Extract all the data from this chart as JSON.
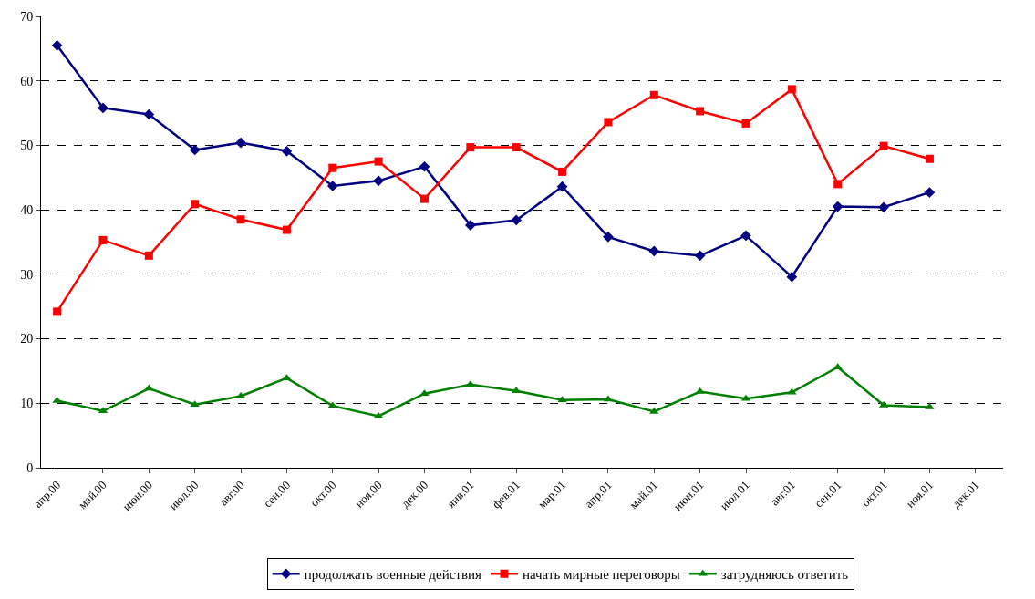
{
  "chart_data": {
    "type": "line",
    "categories": [
      "апр.00",
      "май.00",
      "июн.00",
      "июл.00",
      "авг.00",
      "сен.00",
      "окт.00",
      "ноя.00",
      "дек.00",
      "янв.01",
      "фев.01",
      "мар.01",
      "апр.01",
      "май.01",
      "июн.01",
      "июл.01",
      "авг.01",
      "сен.01",
      "окт.01",
      "ноя.01",
      "дек.01"
    ],
    "series": [
      {
        "name": "продолжать военные действия",
        "color": "#000080",
        "marker": "diamond",
        "values": [
          65.5,
          55.8,
          54.8,
          49.3,
          50.4,
          49.1,
          43.7,
          44.5,
          46.7,
          37.6,
          38.4,
          43.6,
          35.8,
          33.6,
          32.9,
          36.0,
          29.6,
          40.5,
          40.4,
          42.7,
          null
        ]
      },
      {
        "name": "начать мирные переговоры",
        "color": "#ff0000",
        "marker": "square",
        "values": [
          24.2,
          35.3,
          32.9,
          40.9,
          38.5,
          36.9,
          46.5,
          47.5,
          41.7,
          49.7,
          49.7,
          45.9,
          53.6,
          57.8,
          55.3,
          53.4,
          58.7,
          44.0,
          49.9,
          47.9,
          null
        ]
      },
      {
        "name": "затрудняюсь ответить",
        "color": "#008000",
        "marker": "triangle",
        "values": [
          10.4,
          8.8,
          12.3,
          9.8,
          11.1,
          13.9,
          9.6,
          8.0,
          11.5,
          12.9,
          11.9,
          10.5,
          10.6,
          8.7,
          11.8,
          10.7,
          11.7,
          15.6,
          9.7,
          9.4,
          null
        ]
      }
    ],
    "ylim": [
      0,
      70
    ],
    "yticks": [
      0,
      10,
      20,
      30,
      40,
      50,
      60,
      70
    ],
    "grid": "y",
    "legend": "bottom",
    "line_style": "solid"
  }
}
